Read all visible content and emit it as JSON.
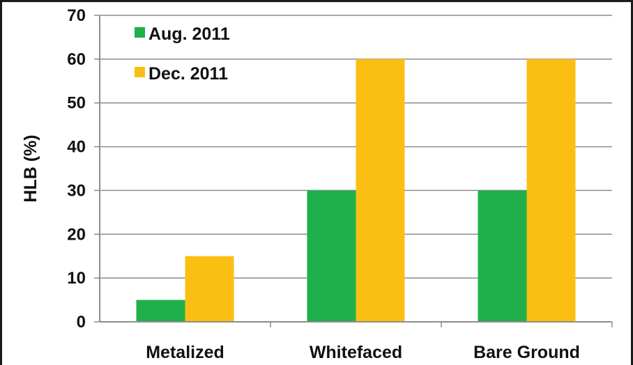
{
  "chart_data": {
    "type": "bar",
    "title": "",
    "xlabel": "",
    "ylabel": "HLB (%)",
    "categories": [
      "Metalized",
      "Whitefaced",
      "Bare Ground"
    ],
    "series": [
      {
        "name": "Aug. 2011",
        "values": [
          5,
          30,
          30
        ],
        "color": "#1fb04b"
      },
      {
        "name": "Dec. 2011",
        "values": [
          15,
          60,
          60
        ],
        "color": "#fbbf14"
      }
    ],
    "ylim": [
      0,
      70
    ],
    "yticks": [
      "0",
      "10",
      "20",
      "30",
      "40",
      "50",
      "60",
      "70"
    ],
    "grid": true,
    "legend_position": "top-left"
  }
}
